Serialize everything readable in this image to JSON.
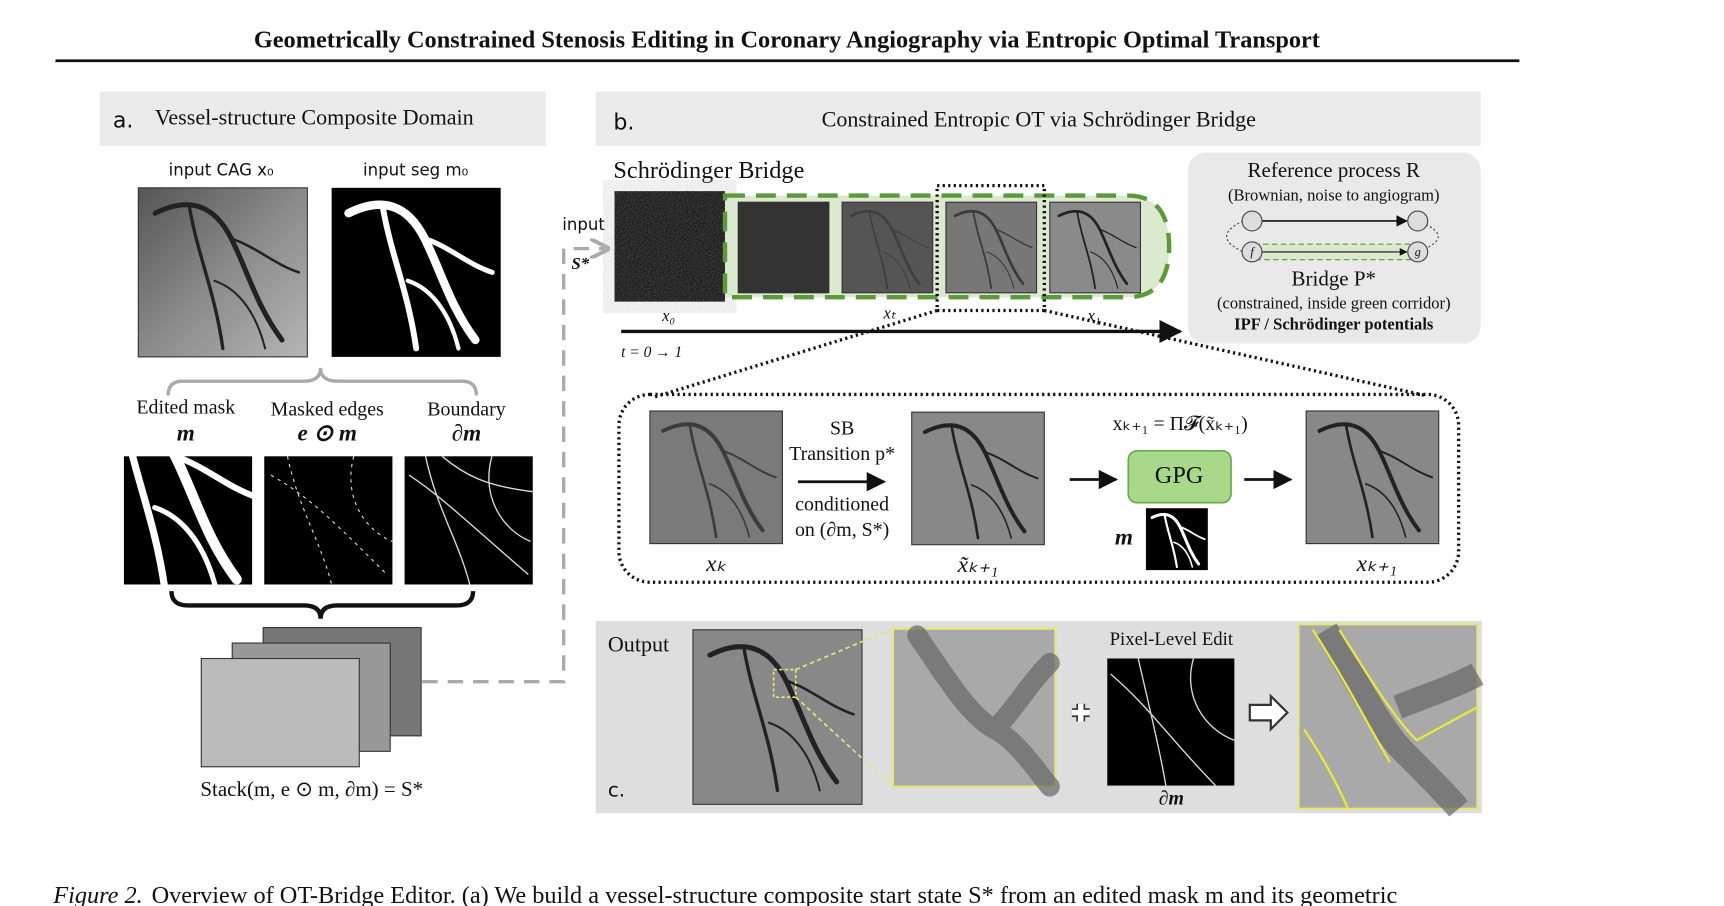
{
  "header": {
    "title": "Geometrically Constrained Stenosis Editing in Coronary Angiography via Entropic Optimal Transport"
  },
  "panel_a": {
    "label": "a.",
    "title": "Vessel-structure Composite Domain",
    "input_cag": "input CAG x₀",
    "input_seg": "input seg m₀",
    "items": [
      {
        "label": "Edited mask",
        "symbol": "m"
      },
      {
        "label": "Masked edges",
        "symbol": "e ⊙ m"
      },
      {
        "label": "Boundary",
        "symbol": "∂m"
      }
    ],
    "stack_formula": "Stack(m, e ⊙ m, ∂m) = S*"
  },
  "panel_b": {
    "label": "b.",
    "title": "Constrained Entropic OT via Schrödinger Bridge",
    "sb_title": "Schrödinger Bridge",
    "input": "input",
    "s_star": "S*",
    "x0": "x₀",
    "xt": "xₜ",
    "x1": "x₁",
    "time": "t = 0 → 1",
    "reference": {
      "title": "Reference process R",
      "subtitle": "(Brownian, noise to angiogram)",
      "f": "f",
      "g": "g",
      "bridge": "Bridge P*",
      "bridge_note": "(constrained, inside green corridor)",
      "potentials": "IPF / Schrödinger potentials"
    },
    "detail": {
      "xk": "xₖ",
      "sb": "SB",
      "transition": "Transition p*",
      "conditioned": "conditioned",
      "on": "on (∂m, S*)",
      "xtilde": "x̃ₖ₊₁",
      "projection": "xₖ₊₁ = Π𝓕(x̃ₖ₊₁)",
      "gpg": "GPG",
      "m": "m",
      "xk1": "xₖ₊₁"
    }
  },
  "panel_c": {
    "label": "c.",
    "output": "Output",
    "pixel_edit": "Pixel-Level Edit",
    "dm": "∂m"
  },
  "caption": {
    "prefix": "Figure 2.",
    "text": "Overview of OT-Bridge Editor. (a) We build a vessel-structure composite start state S* from an edited mask m and its geometric"
  }
}
